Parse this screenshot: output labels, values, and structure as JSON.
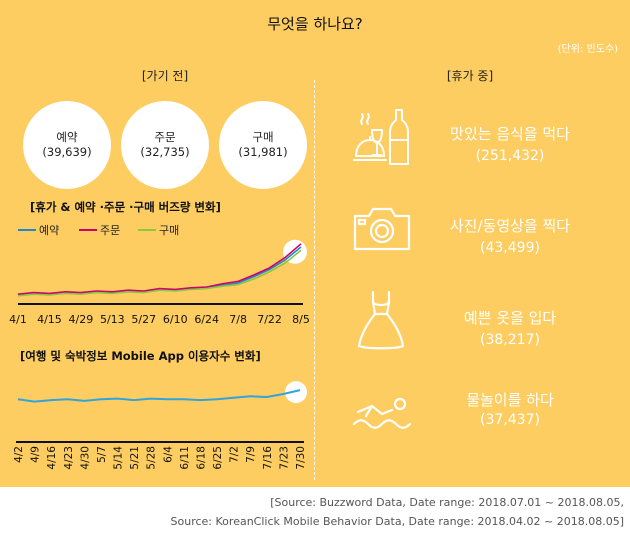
{
  "title": "무엇을 하나요?",
  "unit": "(단위: 빈도수)",
  "before": {
    "heading": "[가기 전]",
    "circles": [
      {
        "label": "예약",
        "value": "(39,639)"
      },
      {
        "label": "주문",
        "value": "(32,735)"
      },
      {
        "label": "구매",
        "value": "(31,981)"
      }
    ]
  },
  "during": {
    "heading": "[휴가 중]",
    "activities": [
      {
        "label": "맛있는 음식을 먹다",
        "value": "(251,432)",
        "icon": "dining-icon"
      },
      {
        "label": "사진/동영상을 찍다",
        "value": "(43,499)",
        "icon": "camera-icon"
      },
      {
        "label": "예쁜 옷을 입다",
        "value": "(38,217)",
        "icon": "dress-icon"
      },
      {
        "label": "물놀이를 하다",
        "value": "(37,437)",
        "icon": "swimming-icon"
      }
    ]
  },
  "colors": {
    "panel": "#fecd62",
    "reserve": "#1e8bc8",
    "order": "#d0006f",
    "purchase": "#8dc63f",
    "app": "#33a3dc"
  },
  "chart_data": [
    {
      "type": "line",
      "title": "[휴가 & 예약 ·주문 ·구매 버즈량 변화]",
      "x_ticks": [
        "4/1",
        "4/15",
        "4/29",
        "5/13",
        "5/27",
        "6/10",
        "6/24",
        "7/8",
        "7/22",
        "8/5"
      ],
      "x": [
        "4/1",
        "4/8",
        "4/15",
        "4/22",
        "4/29",
        "5/6",
        "5/13",
        "5/20",
        "5/27",
        "6/3",
        "6/10",
        "6/17",
        "6/24",
        "7/1",
        "7/8",
        "7/15",
        "7/22",
        "7/29",
        "8/5"
      ],
      "series": [
        {
          "name": "예약",
          "values": [
            10,
            12,
            11,
            13,
            12,
            14,
            13,
            15,
            14,
            17,
            16,
            18,
            19,
            22,
            25,
            33,
            42,
            54,
            70
          ]
        },
        {
          "name": "주문",
          "values": [
            11,
            13,
            12,
            14,
            13,
            15,
            14,
            16,
            15,
            18,
            17,
            19,
            20,
            24,
            27,
            35,
            44,
            57,
            74
          ]
        },
        {
          "name": "구매",
          "values": [
            9,
            11,
            10,
            12,
            11,
            13,
            12,
            14,
            13,
            16,
            15,
            17,
            18,
            21,
            23,
            30,
            39,
            50,
            66
          ]
        }
      ],
      "ylim": [
        0,
        80
      ],
      "legend": "top-left",
      "grid": false
    },
    {
      "type": "line",
      "title": "[여행 및 숙박정보 Mobile App 이용자수 변화]",
      "x": [
        "4/2",
        "4/9",
        "4/16",
        "4/23",
        "4/30",
        "5/7",
        "5/14",
        "5/21",
        "5/28",
        "6/4",
        "6/11",
        "6/18",
        "6/25",
        "7/2",
        "7/9",
        "7/16",
        "7/23",
        "7/30"
      ],
      "series": [
        {
          "name": "",
          "values": [
            40,
            37,
            39,
            40,
            38,
            40,
            41,
            39,
            41,
            40,
            40,
            39,
            40,
            42,
            44,
            43,
            47,
            52
          ]
        }
      ],
      "ylim": [
        0,
        60
      ],
      "grid": false
    }
  ],
  "source": {
    "line1": "[Source: Buzzword Data, Date range: 2018.07.01  ~ 2018.08.05,",
    "line2": "Source: KoreanClick Mobile Behavior Data, Date range: 2018.04.02  ~ 2018.08.05]"
  }
}
